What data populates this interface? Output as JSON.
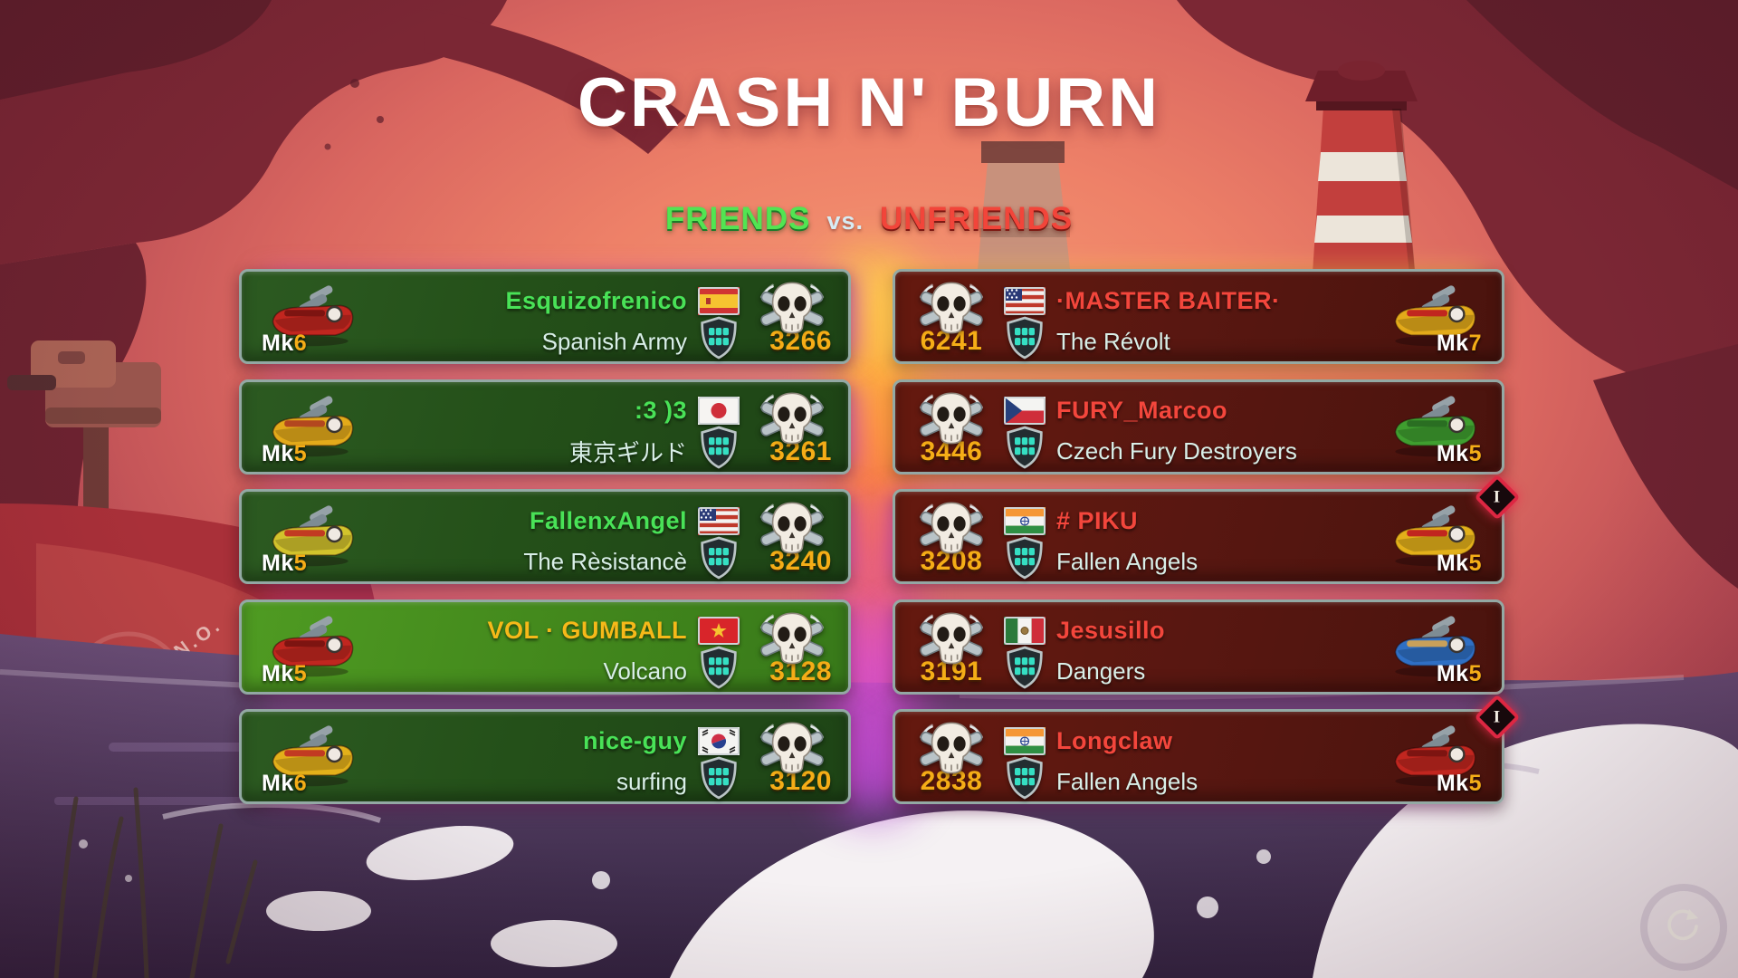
{
  "screen": {
    "title": "CRASH N' BURN"
  },
  "subtitle": {
    "friends": "FRIENDS",
    "vs": "vs.",
    "unfriends": "UNFRIENDS"
  },
  "badge_label": "I",
  "mk_prefix": "Mk",
  "background": {
    "ship_label": "N.O."
  },
  "colors": {
    "friends_name": "#49e257",
    "unfriends_name": "#f3463c",
    "self_name": "#f6b919",
    "guild_text": "#d9efe8",
    "infamy_gold": "#f5ad17",
    "friends_label": "#52e452",
    "unfriends_label": "#f2453a",
    "vs_label": "#d7ecf4"
  },
  "teams": {
    "friends": {
      "name": "FRIENDS",
      "players": [
        {
          "name": "Esquizofrenico",
          "flag": "es",
          "guild": "Spanish Army",
          "infamy": "3266",
          "mk_level": "6",
          "is_self": false,
          "fleet_badge": false,
          "boat": {
            "hull": "#c1261f",
            "accent": "#7d1411"
          }
        },
        {
          "name": ":3 )3",
          "flag": "jp",
          "guild": "東京ギルド",
          "infamy": "3261",
          "mk_level": "5",
          "is_self": false,
          "fleet_badge": false,
          "boat": {
            "hull": "#e3aa1a",
            "accent": "#b3471f"
          }
        },
        {
          "name": "FallenxAngel",
          "flag": "us",
          "guild": "The Rèsistancè",
          "infamy": "3240",
          "mk_level": "5",
          "is_self": false,
          "fleet_badge": false,
          "boat": {
            "hull": "#d2c32c",
            "accent": "#c23a22"
          }
        },
        {
          "name": "VOL · GUMBALL",
          "flag": "vn",
          "guild": "Volcano",
          "infamy": "3128",
          "mk_level": "5",
          "is_self": true,
          "fleet_badge": false,
          "boat": {
            "hull": "#c1261f",
            "accent": "#7d1411"
          }
        },
        {
          "name": "nice-guy",
          "flag": "kr",
          "guild": "surfing",
          "infamy": "3120",
          "mk_level": "6",
          "is_self": false,
          "fleet_badge": false,
          "boat": {
            "hull": "#e3b01a",
            "accent": "#c23a22"
          }
        }
      ]
    },
    "unfriends": {
      "name": "UNFRIENDS",
      "players": [
        {
          "name": "·MASTER BAITER·",
          "flag": "us",
          "guild": "The Révolt",
          "infamy": "6241",
          "mk_level": "7",
          "is_self": false,
          "fleet_badge": false,
          "boat": {
            "hull": "#e3aa1a",
            "accent": "#c1261f"
          }
        },
        {
          "name": "FURY_Marcoo",
          "flag": "cz",
          "guild": "Czech Fury Destroyers",
          "infamy": "3446",
          "mk_level": "5",
          "is_self": false,
          "fleet_badge": false,
          "boat": {
            "hull": "#3f9e2f",
            "accent": "#2a6e22"
          }
        },
        {
          "name": "# PIKU",
          "flag": "in",
          "guild": "Fallen Angels",
          "infamy": "3208",
          "mk_level": "5",
          "is_self": false,
          "fleet_badge": true,
          "boat": {
            "hull": "#e3b01a",
            "accent": "#c1261f"
          }
        },
        {
          "name": "Jesusillo",
          "flag": "mx",
          "guild": "Dangers",
          "infamy": "3191",
          "mk_level": "5",
          "is_self": false,
          "fleet_badge": false,
          "boat": {
            "hull": "#2f6fc4",
            "accent": "#c8a05a"
          }
        },
        {
          "name": "Longclaw",
          "flag": "in",
          "guild": "Fallen Angels",
          "infamy": "2838",
          "mk_level": "5",
          "is_self": false,
          "fleet_badge": true,
          "boat": {
            "hull": "#c1261f",
            "accent": "#7d1411"
          }
        }
      ]
    }
  }
}
